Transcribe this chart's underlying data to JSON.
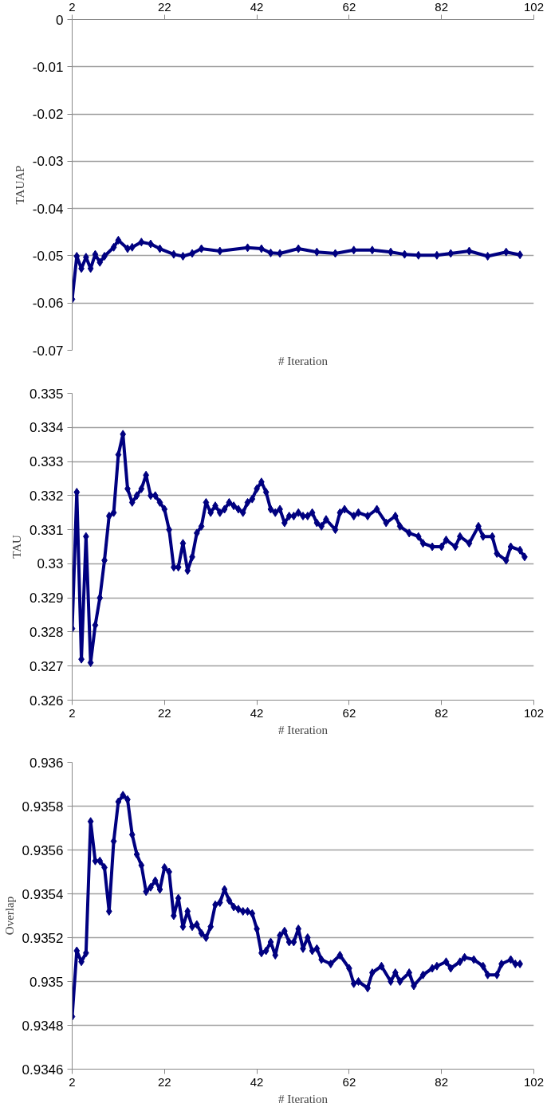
{
  "chart_data": [
    {
      "type": "line",
      "xlabel": "# Iteration",
      "ylabel": "TAUAP",
      "xlim": [
        2,
        102
      ],
      "xticks": [
        2,
        22,
        42,
        62,
        82,
        102
      ],
      "ylim": [
        -0.07,
        0
      ],
      "yticks": [
        0,
        -0.01,
        -0.02,
        -0.03,
        -0.04,
        -0.05,
        -0.06,
        -0.07
      ],
      "grid": "y",
      "marker": "diamond",
      "line_style": "solid",
      "series": [
        {
          "color": "#000080",
          "x": [
            2,
            3,
            4,
            5,
            6,
            7,
            8,
            9,
            11,
            12,
            14,
            15,
            17,
            19,
            21,
            24,
            26,
            28,
            30,
            34,
            40,
            43,
            45,
            47,
            51,
            55,
            59,
            63,
            67,
            71,
            74,
            77,
            81,
            84,
            88,
            92,
            96,
            99
          ],
          "values": [
            -0.0592,
            -0.0501,
            -0.0527,
            -0.0503,
            -0.0527,
            -0.0497,
            -0.0514,
            -0.0501,
            -0.0482,
            -0.0467,
            -0.0485,
            -0.0482,
            -0.0471,
            -0.0475,
            -0.0485,
            -0.0497,
            -0.0501,
            -0.0495,
            -0.0485,
            -0.049,
            -0.0483,
            -0.0485,
            -0.0494,
            -0.0495,
            -0.0485,
            -0.0492,
            -0.0495,
            -0.0488,
            -0.0488,
            -0.0492,
            -0.0497,
            -0.0499,
            -0.0499,
            -0.0495,
            -0.049,
            -0.0501,
            -0.0492,
            -0.0498
          ]
        }
      ]
    },
    {
      "type": "line",
      "xlabel": "# Iteration",
      "ylabel": "TAU",
      "xlim": [
        2,
        102
      ],
      "xticks": [
        2,
        22,
        42,
        62,
        82,
        102
      ],
      "ylim": [
        0.326,
        0.335
      ],
      "yticks": [
        0.326,
        0.327,
        0.328,
        0.329,
        0.33,
        0.331,
        0.332,
        0.333,
        0.334,
        0.335
      ],
      "grid": "y",
      "marker": "diamond",
      "line_style": "solid",
      "series": [
        {
          "color": "#000080",
          "x": [
            2,
            3,
            4,
            5,
            6,
            7,
            8,
            9,
            10,
            11,
            12,
            13,
            14,
            15,
            16,
            17,
            18,
            19,
            20,
            21,
            22,
            23,
            24,
            25,
            26,
            27,
            28,
            29,
            30,
            31,
            32,
            33,
            34,
            35,
            36,
            37,
            38,
            39,
            40,
            41,
            42,
            43,
            44,
            45,
            46,
            47,
            48,
            49,
            50,
            51,
            52,
            53,
            54,
            55,
            56,
            57,
            59,
            60,
            61,
            63,
            64,
            66,
            68,
            70,
            72,
            73,
            75,
            77,
            78,
            80,
            82,
            83,
            85,
            86,
            88,
            90,
            91,
            93,
            94,
            96,
            97,
            99,
            100
          ],
          "values": [
            0.3281,
            0.3321,
            0.3272,
            0.3308,
            0.3271,
            0.3282,
            0.329,
            0.3301,
            0.3314,
            0.3315,
            0.3332,
            0.3338,
            0.3322,
            0.3318,
            0.332,
            0.3322,
            0.3326,
            0.332,
            0.332,
            0.3318,
            0.3316,
            0.331,
            0.3299,
            0.3299,
            0.3306,
            0.3298,
            0.3302,
            0.3309,
            0.3311,
            0.3318,
            0.3315,
            0.3317,
            0.3315,
            0.3316,
            0.3318,
            0.3317,
            0.3316,
            0.3315,
            0.3318,
            0.3319,
            0.3322,
            0.3324,
            0.3321,
            0.3316,
            0.3315,
            0.3316,
            0.3312,
            0.3314,
            0.3314,
            0.3315,
            0.3314,
            0.3314,
            0.3315,
            0.3312,
            0.3311,
            0.3313,
            0.331,
            0.3315,
            0.3316,
            0.3314,
            0.3315,
            0.3314,
            0.3316,
            0.3312,
            0.3314,
            0.3311,
            0.3309,
            0.3308,
            0.3306,
            0.3305,
            0.3305,
            0.3307,
            0.3305,
            0.3308,
            0.3306,
            0.3311,
            0.3308,
            0.3308,
            0.3303,
            0.3301,
            0.3305,
            0.3304,
            0.3302
          ]
        }
      ]
    },
    {
      "type": "line",
      "xlabel": "# Iteration",
      "ylabel": "Overlap",
      "xlim": [
        2,
        102
      ],
      "xticks": [
        2,
        22,
        42,
        62,
        82,
        102
      ],
      "ylim": [
        0.9346,
        0.936
      ],
      "yticks": [
        0.9346,
        0.9348,
        0.935,
        0.9352,
        0.9354,
        0.9356,
        0.9358,
        0.936
      ],
      "grid": "y",
      "marker": "diamond",
      "line_style": "solid",
      "series": [
        {
          "color": "#000080",
          "x": [
            2,
            3,
            4,
            5,
            6,
            7,
            8,
            9,
            10,
            11,
            12,
            13,
            14,
            15,
            16,
            17,
            18,
            19,
            20,
            21,
            22,
            23,
            24,
            25,
            26,
            27,
            28,
            29,
            30,
            31,
            32,
            33,
            34,
            35,
            36,
            37,
            38,
            39,
            40,
            41,
            42,
            43,
            44,
            45,
            46,
            47,
            48,
            49,
            50,
            51,
            52,
            53,
            54,
            55,
            56,
            58,
            60,
            62,
            63,
            64,
            66,
            67,
            69,
            71,
            72,
            73,
            75,
            76,
            78,
            80,
            81,
            83,
            84,
            86,
            87,
            89,
            91,
            92,
            94,
            95,
            97,
            98,
            99
          ],
          "values": [
            0.93484,
            0.93514,
            0.93509,
            0.93513,
            0.93573,
            0.93555,
            0.93555,
            0.93552,
            0.93532,
            0.93564,
            0.93582,
            0.93585,
            0.93583,
            0.93567,
            0.93558,
            0.93553,
            0.93541,
            0.93543,
            0.93546,
            0.93542,
            0.93552,
            0.9355,
            0.9353,
            0.93538,
            0.93525,
            0.93532,
            0.93525,
            0.93526,
            0.93522,
            0.9352,
            0.93525,
            0.93535,
            0.93536,
            0.93542,
            0.93537,
            0.93534,
            0.93533,
            0.93532,
            0.93532,
            0.93531,
            0.93524,
            0.93513,
            0.93514,
            0.93518,
            0.93512,
            0.93521,
            0.93523,
            0.93518,
            0.93518,
            0.93524,
            0.93515,
            0.9352,
            0.93514,
            0.93515,
            0.9351,
            0.93508,
            0.93512,
            0.93506,
            0.93499,
            0.935,
            0.93497,
            0.93504,
            0.93507,
            0.935,
            0.93504,
            0.935,
            0.93504,
            0.93498,
            0.93503,
            0.93506,
            0.93507,
            0.93509,
            0.93506,
            0.93509,
            0.93511,
            0.9351,
            0.93507,
            0.93503,
            0.93503,
            0.93508,
            0.9351,
            0.93508,
            0.93508
          ]
        }
      ]
    }
  ]
}
